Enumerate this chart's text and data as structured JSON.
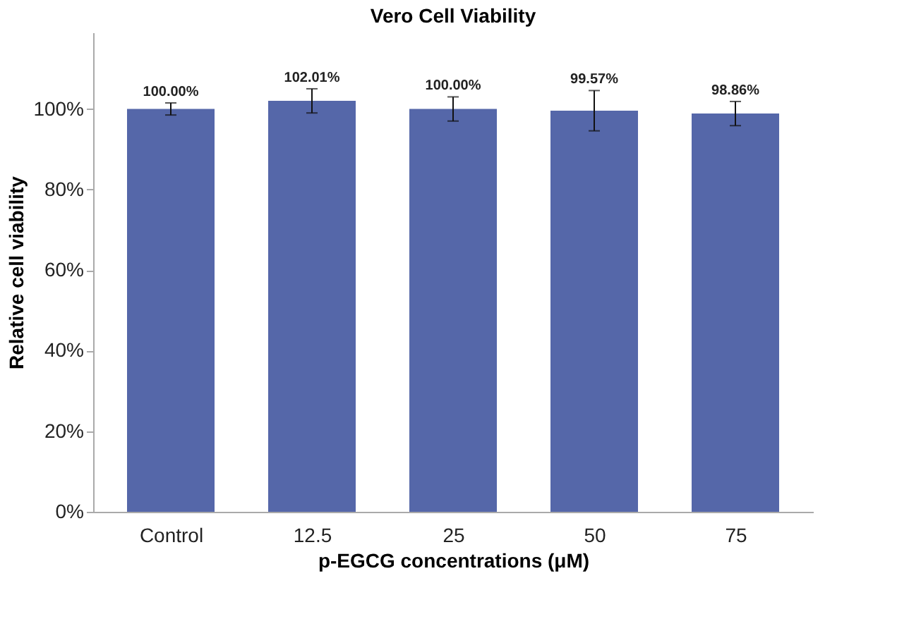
{
  "chart_data": {
    "type": "bar",
    "title": "Vero Cell Viability",
    "xlabel": "p-EGCG concentrations (μM)",
    "ylabel": "Relative cell viability",
    "categories": [
      "Control",
      "12.5",
      "25",
      "50",
      "75"
    ],
    "values": [
      100.0,
      102.01,
      100.0,
      99.57,
      98.86
    ],
    "value_labels": [
      "100.00%",
      "102.01%",
      "100.00%",
      "99.57%",
      "98.86%"
    ],
    "errors": [
      1.5,
      3,
      3,
      5,
      3
    ],
    "color": "#5567a9",
    "ylim": [
      0,
      119
    ],
    "yticks": [
      {
        "value": 0,
        "label": "0%"
      },
      {
        "value": 20,
        "label": "20%"
      },
      {
        "value": 40,
        "label": "40%"
      },
      {
        "value": 60,
        "label": "60%"
      },
      {
        "value": 80,
        "label": "80%"
      },
      {
        "value": 100,
        "label": "100%"
      }
    ],
    "grid": false
  }
}
